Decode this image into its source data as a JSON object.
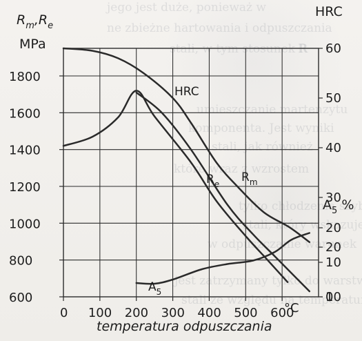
{
  "chart_data": {
    "type": "line",
    "x_axis": {
      "label": "temperatura odpuszczania",
      "unit": "°C",
      "range": [
        0,
        700
      ],
      "ticks": [
        "0",
        "100",
        "200",
        "300",
        "400",
        "500",
        "600"
      ]
    },
    "left_axis": {
      "label_main": "R",
      "label_sub1": "m",
      "label_sep": ",",
      "label_sub2_prefix": "R",
      "label_sub2": "e",
      "unit": "MPa",
      "range": [
        600,
        1950
      ],
      "ticks": [
        "600",
        "800",
        "1000",
        "1200",
        "1400",
        "1600",
        "1800"
      ]
    },
    "right_axis_hrc": {
      "label": "HRC",
      "range": [
        10,
        60
      ],
      "ticks": [
        "60",
        "50",
        "40",
        "30",
        "20",
        "10"
      ]
    },
    "right_axis_a5": {
      "label_main": "A",
      "label_sub": "5",
      "label_suffix": " %",
      "range": [
        0,
        20
      ],
      "ticks": [
        "20",
        "10",
        "0"
      ]
    },
    "series": [
      {
        "name": "HRC",
        "axis": "right_axis_hrc",
        "points": [
          {
            "x": 0,
            "y": 60
          },
          {
            "x": 80,
            "y": 59.5
          },
          {
            "x": 150,
            "y": 58
          },
          {
            "x": 220,
            "y": 55
          },
          {
            "x": 300,
            "y": 50
          },
          {
            "x": 350,
            "y": 45
          },
          {
            "x": 420,
            "y": 37
          },
          {
            "x": 480,
            "y": 32
          },
          {
            "x": 550,
            "y": 27
          },
          {
            "x": 620,
            "y": 24
          },
          {
            "x": 675,
            "y": 21
          }
        ]
      },
      {
        "name_main": "R",
        "name_sub": "e",
        "axis": "left_axis",
        "points": [
          {
            "x": 0,
            "y": 1420
          },
          {
            "x": 80,
            "y": 1470
          },
          {
            "x": 150,
            "y": 1575
          },
          {
            "x": 200,
            "y": 1720
          },
          {
            "x": 250,
            "y": 1580
          },
          {
            "x": 350,
            "y": 1330
          },
          {
            "x": 420,
            "y": 1120
          },
          {
            "x": 500,
            "y": 930
          },
          {
            "x": 560,
            "y": 800
          },
          {
            "x": 615,
            "y": 680
          }
        ]
      },
      {
        "name_main": "R",
        "name_sub": "m",
        "axis": "left_axis",
        "points": [
          {
            "x": 200,
            "y": 1710
          },
          {
            "x": 270,
            "y": 1600
          },
          {
            "x": 350,
            "y": 1400
          },
          {
            "x": 450,
            "y": 1100
          },
          {
            "x": 520,
            "y": 940
          },
          {
            "x": 580,
            "y": 820
          },
          {
            "x": 640,
            "y": 700
          },
          {
            "x": 675,
            "y": 630
          }
        ]
      },
      {
        "name_main": "A",
        "name_sub": "5",
        "axis": "right_axis_a5",
        "points": [
          {
            "x": 200,
            "y": 4
          },
          {
            "x": 250,
            "y": 3.8
          },
          {
            "x": 300,
            "y": 5
          },
          {
            "x": 380,
            "y": 8
          },
          {
            "x": 450,
            "y": 9.5
          },
          {
            "x": 520,
            "y": 10.5
          },
          {
            "x": 580,
            "y": 13
          },
          {
            "x": 625,
            "y": 16.5
          },
          {
            "x": 675,
            "y": 18.5
          }
        ]
      }
    ],
    "grid": true,
    "colors": {
      "grid": "#2b2b2b",
      "lines": "#2a2a2a",
      "text": "#1d1d1d"
    }
  },
  "ghost_text": [
    "jego jest duże, ponieważ w",
    "ne zbieżne hartowania i odpuszczania",
    "stali, w tym stosunek R",
    "R",
    "umieszczanie martenzytu",
    "komponenta. Jest wyniki",
    "stali, jak również",
    "które wraz z wzrostem",
    "tylko chłodzenia szybkością",
    "stali, który wskazuje wartości",
    "w odpuszczanie warunek",
    "jest zatrzymany tylko do warstwy",
    "stali ze względu na temperaturę"
  ]
}
